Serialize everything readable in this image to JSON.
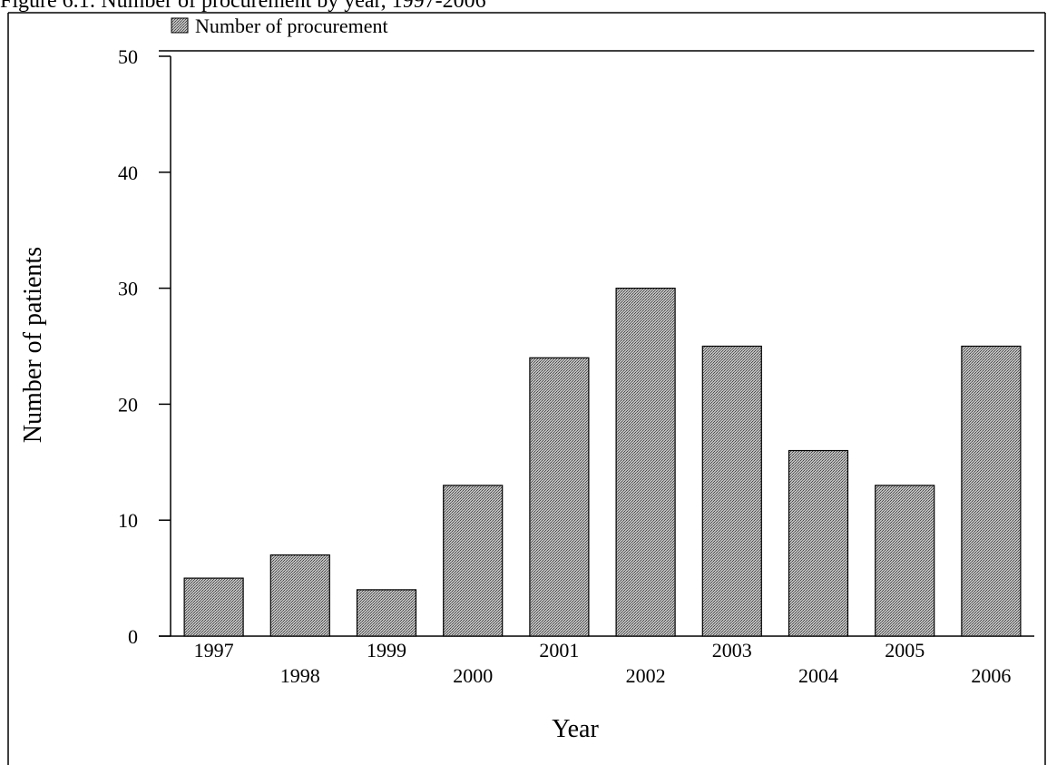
{
  "title": "Figure 6.1: Number of procurement by year, 1997-2006",
  "chart_data": {
    "type": "bar",
    "categories": [
      "1997",
      "1998",
      "1999",
      "2000",
      "2001",
      "2002",
      "2003",
      "2004",
      "2005",
      "2006"
    ],
    "series": [
      {
        "name": "Number of procurement",
        "values": [
          5,
          7,
          4,
          13,
          24,
          30,
          25,
          16,
          13,
          25
        ]
      }
    ],
    "xlabel": "Year",
    "ylabel": "Number of patients",
    "ylim": [
      0,
      50
    ],
    "yticks": [
      "0",
      "10",
      "20",
      "30",
      "40",
      "50"
    ],
    "grid": false,
    "legend_position": "top-left",
    "bar_fill": "#9a9a9a",
    "bar_stroke": "#000000"
  }
}
